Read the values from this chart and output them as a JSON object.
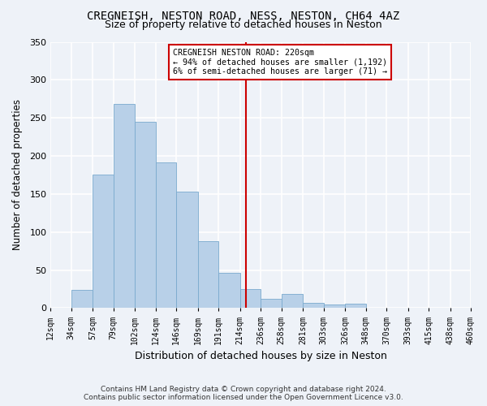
{
  "title": "CREGNEISH, NESTON ROAD, NESS, NESTON, CH64 4AZ",
  "subtitle": "Size of property relative to detached houses in Neston",
  "xlabel": "Distribution of detached houses by size in Neston",
  "ylabel": "Number of detached properties",
  "bar_color": "#b8d0e8",
  "bar_edge_color": "#7aaace",
  "background_color": "#eef2f8",
  "grid_color": "#ffffff",
  "hist_bins": [
    12,
    34,
    57,
    79,
    102,
    124,
    146,
    169,
    191,
    214,
    236,
    258,
    281,
    303,
    326,
    348,
    370,
    393,
    415,
    438,
    460
  ],
  "hist_counts": [
    0,
    24,
    175,
    268,
    245,
    192,
    153,
    88,
    46,
    25,
    12,
    19,
    7,
    5,
    6,
    0,
    0,
    0,
    0,
    0
  ],
  "property_size": 220,
  "vline_color": "#cc0000",
  "annotation_line1": "CREGNEISH NESTON ROAD: 220sqm",
  "annotation_line2": "← 94% of detached houses are smaller (1,192)",
  "annotation_line3": "6% of semi-detached houses are larger (71) →",
  "annotation_box_color": "#ffffff",
  "annotation_box_edge": "#cc0000",
  "ylim": [
    0,
    350
  ],
  "yticks": [
    0,
    50,
    100,
    150,
    200,
    250,
    300,
    350
  ],
  "footer_line1": "Contains HM Land Registry data © Crown copyright and database right 2024.",
  "footer_line2": "Contains public sector information licensed under the Open Government Licence v3.0."
}
